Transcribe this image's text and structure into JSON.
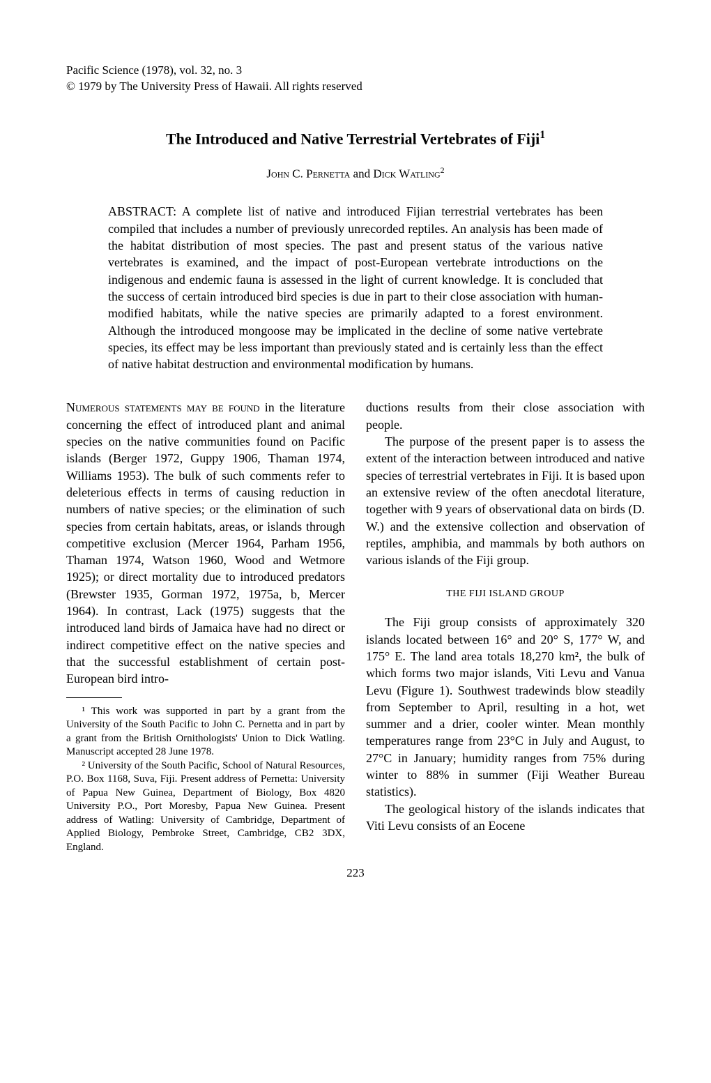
{
  "journal": {
    "line1": "Pacific Science (1978), vol. 32, no. 3",
    "line2": "© 1979 by The University Press of Hawaii. All rights reserved"
  },
  "title": "The Introduced and Native Terrestrial Vertebrates of Fiji",
  "title_footnote_mark": "1",
  "authors": {
    "a1_first": "John",
    "a1_rest": " C. P",
    "a1_sc": "ernetta",
    "and": " and ",
    "a2_first": "Dick",
    "a2_rest": " W",
    "a2_sc": "atling",
    "footnote_mark": "2"
  },
  "abstract": "ABSTRACT: A complete list of native and introduced Fijian terrestrial vertebrates has been compiled that includes a number of previously unrecorded reptiles. An analysis has been made of the habitat distribution of most species. The past and present status of the various native vertebrates is examined, and the impact of post-European vertebrate introductions on the indigenous and endemic fauna is assessed in the light of current knowledge. It is concluded that the success of certain introduced bird species is due in part to their close association with human-modified habitats, while the native species are primarily adapted to a forest environment. Although the introduced mongoose may be implicated in the decline of some native vertebrate species, its effect may be less important than previously stated and is certainly less than the effect of native habitat destruction and environmental modification by humans.",
  "left_col": {
    "p1_sc": "Numerous statements may be found",
    "p1_rest": " in the literature concerning the effect of introduced plant and animal species on the native communities found on Pacific islands (Berger 1972, Guppy 1906, Thaman 1974, Williams 1953). The bulk of such comments refer to deleterious effects in terms of causing reduction in numbers of native species; or the elimination of such species from certain habitats, areas, or islands through competitive exclusion (Mercer 1964, Parham 1956, Thaman 1974, Watson 1960, Wood and Wetmore 1925); or direct mortality due to introduced predators (Brewster 1935, Gorman 1972, 1975a, b, Mercer 1964). In contrast, Lack (1975) suggests that the introduced land birds of Jamaica have had no direct or indirect competitive effect on the native species and that the successful establishment of certain post-European bird intro-"
  },
  "footnotes": {
    "f1": "¹ This work was supported in part by a grant from the University of the South Pacific to John C. Pernetta and in part by a grant from the British Ornithologists' Union to Dick Watling. Manuscript accepted 28 June 1978.",
    "f2": "² University of the South Pacific, School of Natural Resources, P.O. Box 1168, Suva, Fiji. Present address of Pernetta: University of Papua New Guinea, Department of Biology, Box 4820 University P.O., Port Moresby, Papua New Guinea. Present address of Watling: University of Cambridge, Department of Applied Biology, Pembroke Street, Cambridge, CB2 3DX, England."
  },
  "right_col": {
    "p1": "ductions results from their close association with people.",
    "p2": "The purpose of the present paper is to assess the extent of the interaction between introduced and native species of terrestrial vertebrates in Fiji. It is based upon an extensive review of the often anecdotal literature, together with 9 years of observational data on birds (D. W.) and the extensive collection and observation of reptiles, amphibia, and mammals by both authors on various islands of the Fiji group.",
    "section_head": "THE FIJI ISLAND GROUP",
    "p3": "The Fiji group consists of approximately 320 islands located between 16° and 20° S, 177° W, and 175° E. The land area totals 18,270 km², the bulk of which forms two major islands, Viti Levu and Vanua Levu (Figure 1). Southwest tradewinds blow steadily from September to April, resulting in a hot, wet summer and a drier, cooler winter. Mean monthly temperatures range from 23°C in July and August, to 27°C in January; humidity ranges from 75% during winter to 88% in summer (Fiji Weather Bureau statistics).",
    "p4": "The geological history of the islands indicates that Viti Levu consists of an Eocene"
  },
  "page_number": "223",
  "colors": {
    "text": "#000000",
    "background": "#ffffff"
  },
  "typography": {
    "body_font": "Times New Roman",
    "body_size_pt": 18,
    "title_size_pt": 22,
    "footnote_size_pt": 15
  }
}
